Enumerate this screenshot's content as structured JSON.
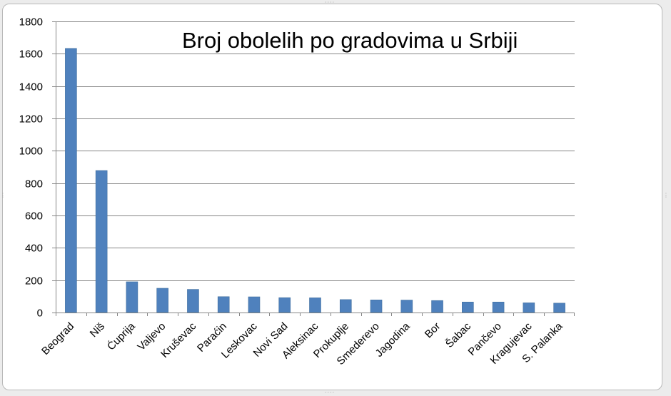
{
  "colors": {
    "bar": "#4f81bd",
    "bar_edge": "#41709f",
    "grid": "#868686",
    "axis": "#868686"
  },
  "chart_data": {
    "type": "bar",
    "title": "Broj obolelih po gradovima u Srbiji",
    "xlabel": "",
    "ylabel": "",
    "ylim": [
      0,
      1800
    ],
    "yticks": [
      0,
      200,
      400,
      600,
      800,
      1000,
      1200,
      1400,
      1600,
      1800
    ],
    "grid": true,
    "legend": "none",
    "categories": [
      "Beograd",
      "Niš",
      "Ćuprija",
      "Valjevo",
      "Kruševac",
      "Paraćin",
      "Leskovac",
      "Novi Sad",
      "Aleksinac",
      "Prokuplje",
      "Smederevo",
      "Jagodina",
      "Bor",
      "Šabac",
      "Pančevo",
      "Kragujevac",
      "S. Palanka"
    ],
    "values": [
      1633,
      878,
      190,
      150,
      143,
      98,
      97,
      92,
      91,
      80,
      78,
      77,
      74,
      65,
      65,
      60,
      58
    ]
  }
}
